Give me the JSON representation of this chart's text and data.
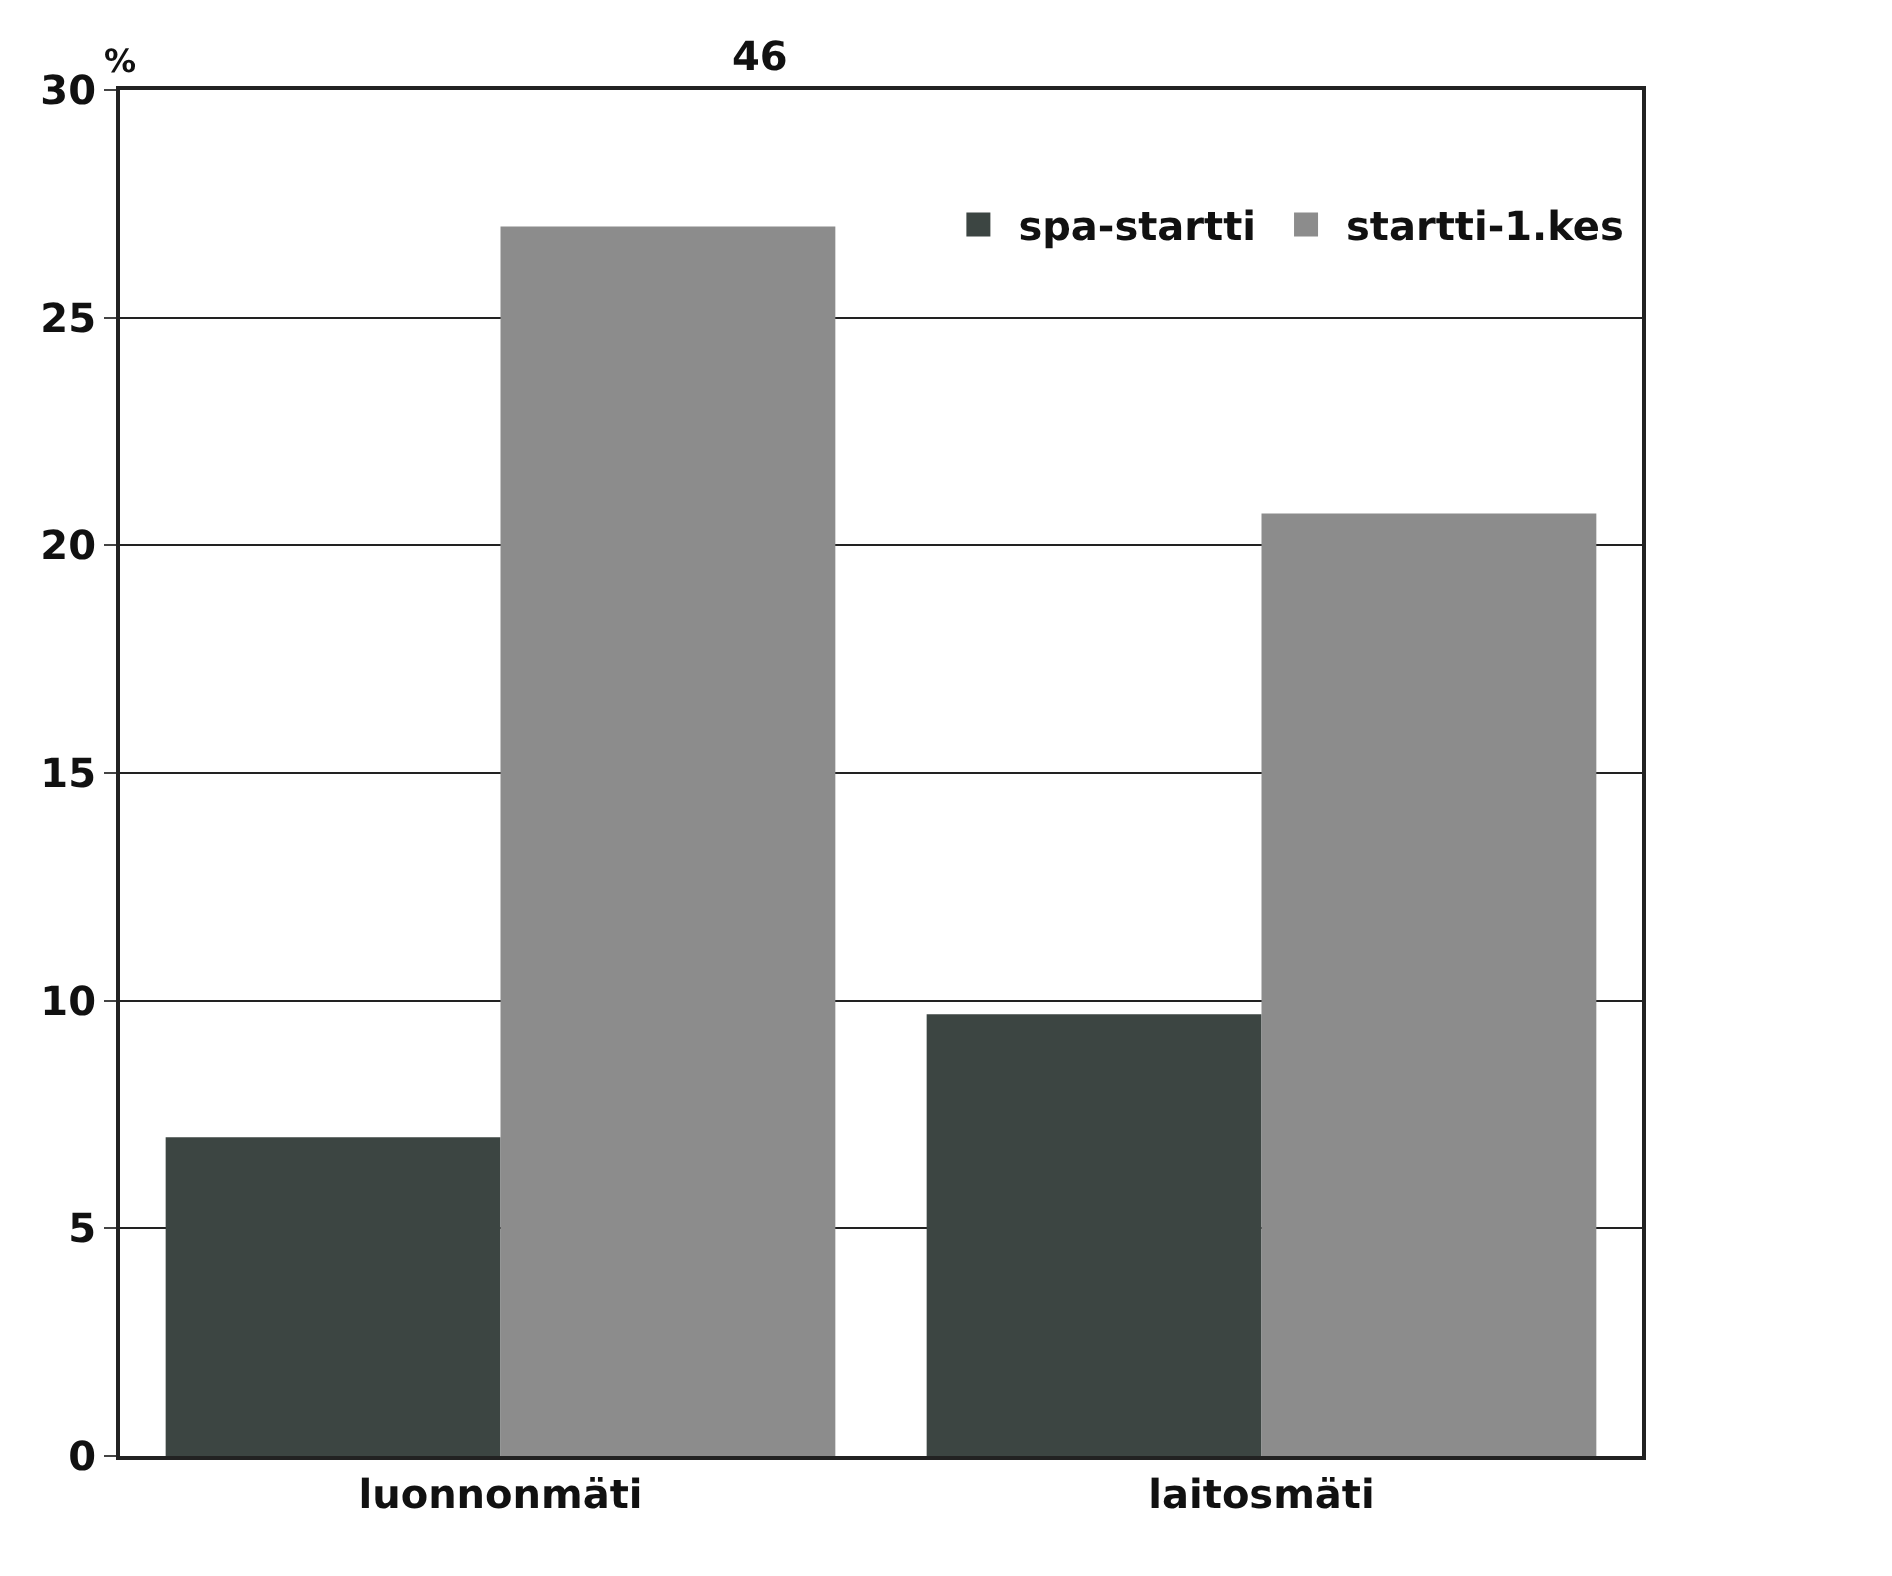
{
  "chart_data": {
    "type": "bar",
    "ylabel": "%",
    "annotations": [
      "46"
    ],
    "categories": [
      "luonnonmäti",
      "laitosmäti"
    ],
    "series": [
      {
        "name": "spa-startti",
        "color": "#3c4542",
        "values": [
          7,
          9.7
        ]
      },
      {
        "name": "startti-1.kes",
        "color": "#8c8c8c",
        "values": [
          27,
          20.7
        ]
      }
    ],
    "ylim": [
      0,
      30
    ],
    "yticks": [
      0,
      5,
      10,
      15,
      20,
      25,
      30
    ],
    "grid": "y",
    "legend": "top right"
  }
}
